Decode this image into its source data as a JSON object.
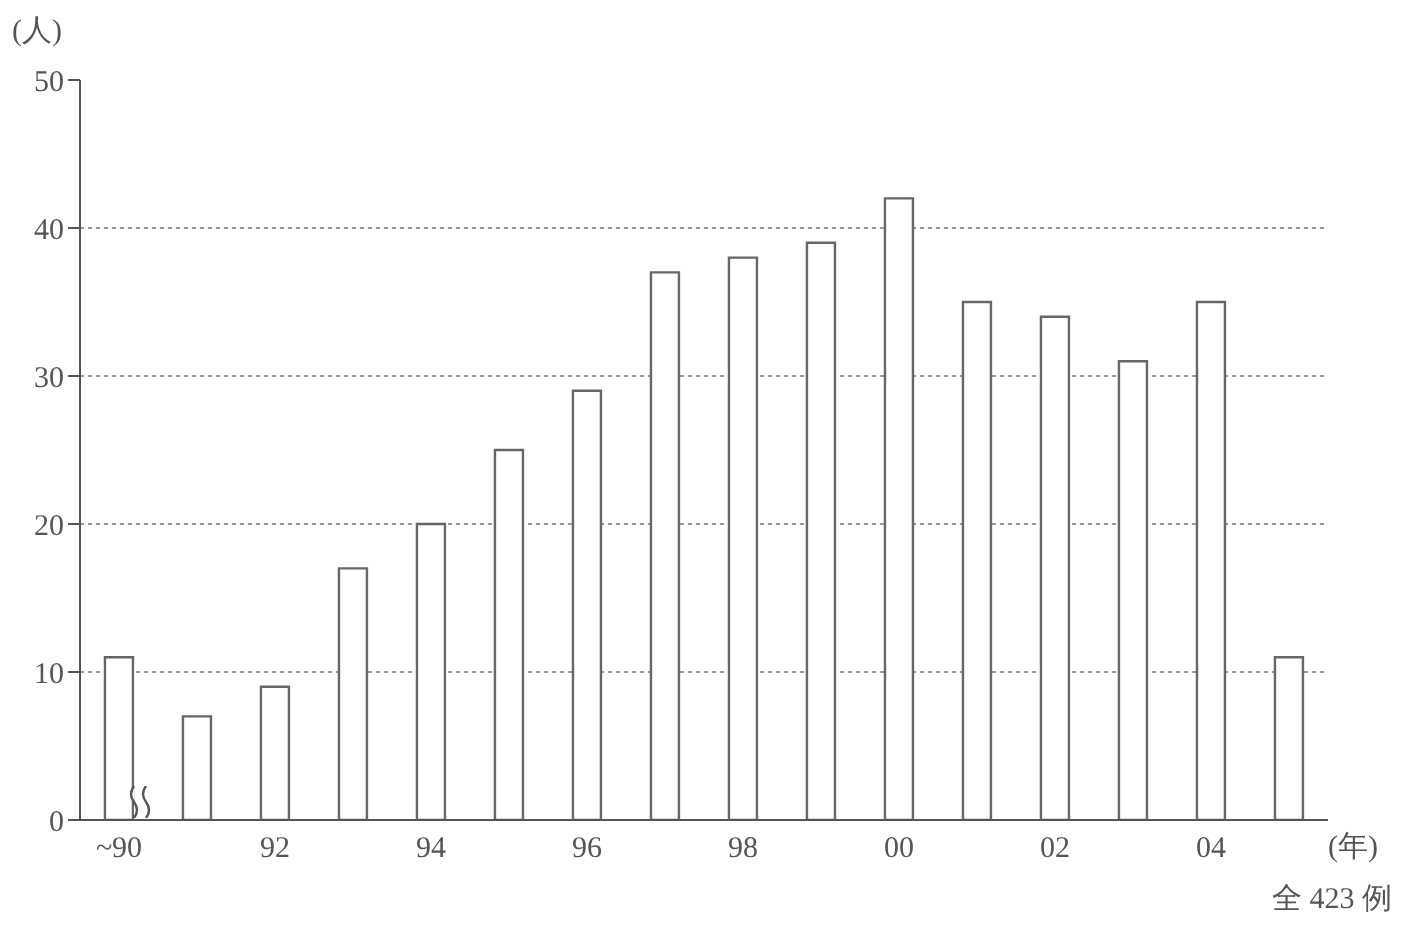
{
  "chart_data": {
    "type": "bar",
    "ylabel": "(人)",
    "xlabel": "(年)",
    "categories": [
      "~90",
      null,
      "92",
      null,
      "94",
      null,
      "96",
      null,
      "98",
      null,
      "00",
      null,
      "02",
      null,
      "04",
      null
    ],
    "values": [
      11,
      7,
      9,
      17,
      20,
      25,
      29,
      37,
      38,
      39,
      42,
      35,
      34,
      31,
      35,
      11
    ],
    "color": "#ffffff",
    "ylim": [
      0,
      50
    ],
    "yticks": [
      0,
      10,
      20,
      30,
      40,
      50
    ],
    "grid": "y",
    "annotations": [
      "全 423 例"
    ]
  }
}
